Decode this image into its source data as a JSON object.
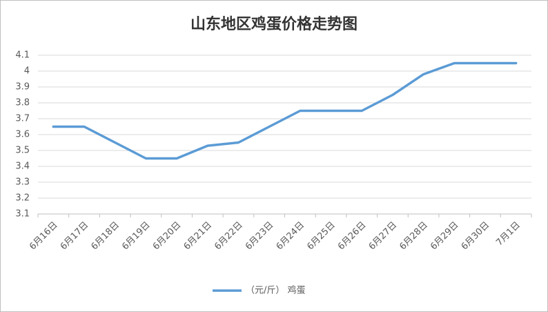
{
  "chart_data": {
    "type": "line",
    "title": "山东地区鸡蛋价格走势图",
    "categories": [
      "6月16日",
      "6月17日",
      "6月18日",
      "6月19日",
      "6月20日",
      "6月21日",
      "6月22日",
      "6月23日",
      "6月24日",
      "6月25日",
      "6月26日",
      "6月27日",
      "6月28日",
      "6月29日",
      "6月30日",
      "7月1日"
    ],
    "series": [
      {
        "name": "（元/斤） 鸡蛋",
        "color": "#5b9bd5",
        "values": [
          3.65,
          3.65,
          3.55,
          3.45,
          3.45,
          3.53,
          3.55,
          3.65,
          3.75,
          3.75,
          3.75,
          3.85,
          3.98,
          4.05,
          4.05,
          4.05
        ]
      }
    ],
    "ylim": [
      3.1,
      4.1
    ],
    "yticks": [
      3.1,
      3.2,
      3.3,
      3.4,
      3.5,
      3.6,
      3.7,
      3.8,
      3.9,
      4,
      4.1
    ],
    "grid": true,
    "legend": "bottom"
  }
}
